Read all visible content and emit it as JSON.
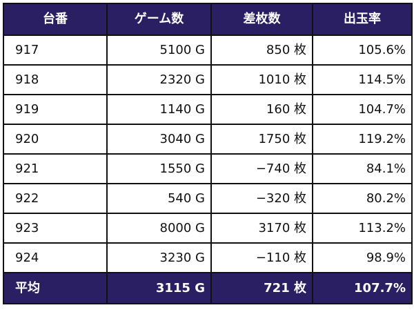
{
  "header": {
    "col1": "台番",
    "col2": "ゲーム数",
    "col3": "差枚数",
    "col4": "出玉率"
  },
  "rows": [
    {
      "machine": "917",
      "games": "5100 G",
      "diff": "850 枚",
      "rate": "105.6%"
    },
    {
      "machine": "918",
      "games": "2320 G",
      "diff": "1010 枚",
      "rate": "114.5%"
    },
    {
      "machine": "919",
      "games": "1140 G",
      "diff": "160 枚",
      "rate": "104.7%"
    },
    {
      "machine": "920",
      "games": "3040 G",
      "diff": "1750 枚",
      "rate": "119.2%"
    },
    {
      "machine": "921",
      "games": "1550 G",
      "diff": "−740 枚",
      "rate": "84.1%"
    },
    {
      "machine": "922",
      "games": "540 G",
      "diff": "−320 枚",
      "rate": "80.2%"
    },
    {
      "machine": "923",
      "games": "8000 G",
      "diff": "3170 枚",
      "rate": "113.2%"
    },
    {
      "machine": "924",
      "games": "3230 G",
      "diff": "−110 枚",
      "rate": "98.9%"
    }
  ],
  "footer": {
    "label": "平均",
    "games": "3115 G",
    "diff": "721 枚",
    "rate": "107.7%"
  },
  "colors": {
    "header_bg": "#2b1f63",
    "header_text": "#ffffff",
    "border": "#111111"
  }
}
